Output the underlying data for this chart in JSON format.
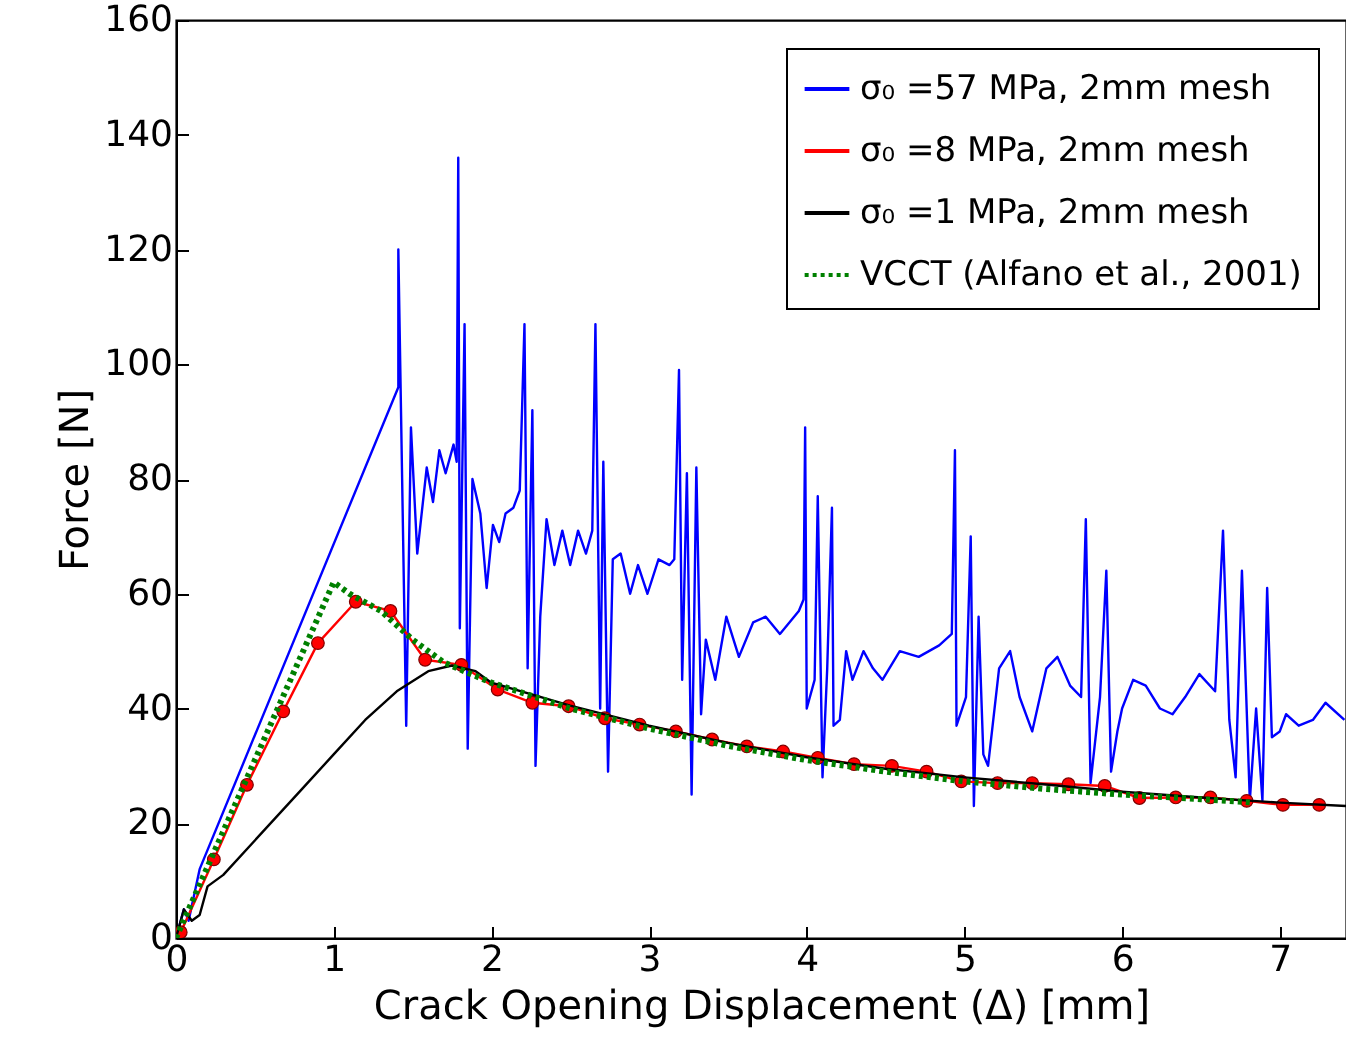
{
  "chart_data": {
    "type": "line",
    "xlabel": "Crack Opening Displacement (Δ) [mm]",
    "ylabel": "Force [N]",
    "xlim": [
      0,
      7.42
    ],
    "ylim": [
      0,
      160
    ],
    "xticks": [
      0,
      1,
      2,
      3,
      4,
      5,
      6,
      7
    ],
    "yticks": [
      0,
      20,
      40,
      60,
      80,
      100,
      120,
      140,
      160
    ],
    "grid": false,
    "legend": "top right",
    "series": [
      {
        "name": "σ₀ =57 MPa, 2mm mesh",
        "color": "#0000ff",
        "marker": "none",
        "line_style": "solid",
        "x": [
          0,
          0.05,
          0.08,
          0.15,
          1.41,
          1.41,
          1.46,
          1.49,
          1.53,
          1.59,
          1.63,
          1.67,
          1.71,
          1.76,
          1.78,
          1.79,
          1.8,
          1.83,
          1.85,
          1.88,
          1.93,
          1.97,
          2.01,
          2.05,
          2.09,
          2.14,
          2.18,
          2.21,
          2.23,
          2.26,
          2.28,
          2.31,
          2.35,
          2.4,
          2.45,
          2.5,
          2.55,
          2.6,
          2.64,
          2.66,
          2.69,
          2.71,
          2.74,
          2.77,
          2.82,
          2.88,
          2.93,
          2.99,
          3.06,
          3.13,
          3.16,
          3.19,
          3.21,
          3.24,
          3.27,
          3.3,
          3.33,
          3.36,
          3.42,
          3.49,
          3.57,
          3.66,
          3.74,
          3.83,
          3.95,
          3.98,
          3.99,
          4.0,
          4.05,
          4.07,
          4.1,
          4.13,
          4.16,
          4.17,
          4.21,
          4.25,
          4.29,
          4.36,
          4.42,
          4.48,
          4.59,
          4.71,
          4.84,
          4.92,
          4.94,
          4.95,
          5.01,
          5.04,
          5.06,
          5.09,
          5.12,
          5.15,
          5.22,
          5.29,
          5.35,
          5.43,
          5.52,
          5.59,
          5.67,
          5.74,
          5.77,
          5.8,
          5.86,
          5.9,
          5.93,
          5.97,
          6.0,
          6.07,
          6.15,
          6.24,
          6.32,
          6.4,
          6.49,
          6.59,
          6.64,
          6.68,
          6.72,
          6.76,
          6.81,
          6.85,
          6.89,
          6.92,
          6.95,
          7.0,
          7.04,
          7.12,
          7.21,
          7.29,
          7.41
        ],
        "values": [
          0,
          5,
          3,
          12,
          96,
          120,
          37,
          89,
          67,
          82,
          76,
          85,
          81,
          86,
          83,
          136,
          54,
          107,
          33,
          80,
          74,
          61,
          72,
          69,
          74,
          75,
          78,
          107,
          47,
          92,
          30,
          56,
          73,
          65,
          71,
          65,
          71,
          67,
          71,
          107,
          40,
          83,
          29,
          66,
          67,
          60,
          65,
          60,
          66,
          65,
          66,
          99,
          45,
          81,
          25,
          82,
          39,
          52,
          45,
          56,
          49,
          55,
          56,
          53,
          57,
          59,
          89,
          40,
          45,
          77,
          28,
          47,
          75,
          37,
          38,
          50,
          45,
          50,
          47,
          45,
          50,
          49,
          51,
          53,
          85,
          37,
          42,
          70,
          23,
          56,
          32,
          30,
          47,
          50,
          42,
          36,
          47,
          49,
          44,
          42,
          73,
          27,
          42,
          64,
          29,
          36,
          40,
          45,
          44,
          40,
          39,
          42,
          46,
          43,
          71,
          38,
          28,
          64,
          24,
          40,
          24,
          61,
          35,
          36,
          39,
          37,
          38,
          41,
          38
        ]
      },
      {
        "name": "σ₀ =8 MPa, 2mm mesh",
        "color": "#ff0000",
        "marker": "circle",
        "line_style": "solid",
        "x": [
          0.03,
          0.24,
          0.45,
          0.68,
          0.9,
          1.14,
          1.36,
          1.58,
          1.81,
          2.04,
          2.26,
          2.49,
          2.72,
          2.94,
          3.17,
          3.4,
          3.62,
          3.85,
          4.07,
          4.3,
          4.54,
          4.76,
          4.98,
          5.21,
          5.43,
          5.66,
          5.89,
          6.11,
          6.34,
          6.56,
          6.79,
          7.02,
          7.25
        ],
        "values": [
          1,
          13.7,
          26.7,
          39.5,
          51.4,
          58.6,
          57,
          48.5,
          47.6,
          43.3,
          41,
          40.4,
          38.3,
          37.2,
          36,
          34.6,
          33.4,
          32.5,
          31.4,
          30.3,
          30,
          29,
          27.3,
          27,
          27,
          26.8,
          26.5,
          24.4,
          24.5,
          24.5,
          23.9,
          23.2,
          23.2
        ]
      },
      {
        "name": "σ₀ =1 MPa, 2mm mesh",
        "color": "#000000",
        "marker": "none",
        "line_style": "solid",
        "x": [
          0,
          0.05,
          0.1,
          0.15,
          0.2,
          0.3,
          0.5,
          0.8,
          1.0,
          1.2,
          1.4,
          1.6,
          1.75,
          1.9,
          2.0,
          2.5,
          3.0,
          3.5,
          4.0,
          4.5,
          5.0,
          5.5,
          6.0,
          6.5,
          7.0,
          7.42
        ],
        "values": [
          0,
          5,
          3,
          4,
          9,
          11,
          17,
          26,
          32,
          38,
          43,
          46.5,
          47.5,
          46.5,
          44.5,
          40.5,
          37,
          34,
          31.5,
          29.5,
          28,
          26.8,
          25.5,
          24.5,
          23.6,
          23
        ]
      },
      {
        "name": "VCCT (Alfano et al., 2001)",
        "color": "#008000",
        "marker": "none",
        "line_style": "dotted",
        "x": [
          0,
          1.0,
          1.1,
          1.3,
          1.5,
          1.7,
          2.0,
          2.5,
          3.0,
          3.5,
          4.0,
          4.5,
          5.0,
          5.5,
          6.0,
          6.5,
          6.83
        ],
        "values": [
          0,
          62,
          60,
          57,
          52,
          48,
          44.5,
          40,
          36.5,
          33.5,
          31,
          29,
          27.3,
          26,
          25,
          24.2,
          23.6
        ]
      }
    ]
  }
}
